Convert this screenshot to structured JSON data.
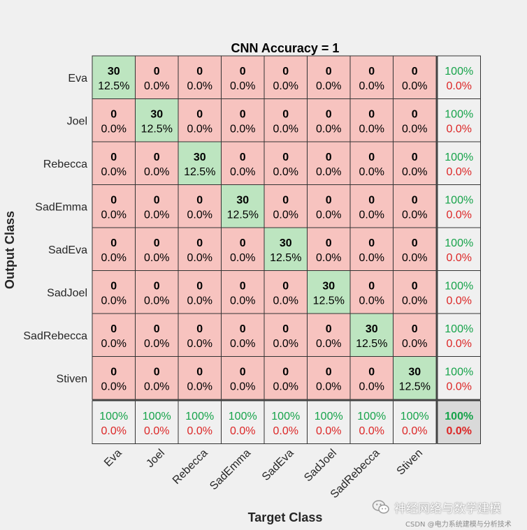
{
  "chart_data": {
    "type": "heatmap",
    "title": "CNN Accuracy  =  1",
    "xlabel": "Target Class",
    "ylabel": "Output Class",
    "classes": [
      "Eva",
      "Joel",
      "Rebecca",
      "SadEmma",
      "SadEva",
      "SadJoel",
      "SadRebecca",
      "Stiven"
    ],
    "matrix": [
      [
        30,
        0,
        0,
        0,
        0,
        0,
        0,
        0
      ],
      [
        0,
        30,
        0,
        0,
        0,
        0,
        0,
        0
      ],
      [
        0,
        0,
        30,
        0,
        0,
        0,
        0,
        0
      ],
      [
        0,
        0,
        0,
        30,
        0,
        0,
        0,
        0
      ],
      [
        0,
        0,
        0,
        0,
        30,
        0,
        0,
        0
      ],
      [
        0,
        0,
        0,
        0,
        0,
        30,
        0,
        0
      ],
      [
        0,
        0,
        0,
        0,
        0,
        0,
        30,
        0
      ],
      [
        0,
        0,
        0,
        0,
        0,
        0,
        0,
        30
      ]
    ],
    "percentages": [
      [
        "12.5%",
        "0.0%",
        "0.0%",
        "0.0%",
        "0.0%",
        "0.0%",
        "0.0%",
        "0.0%"
      ],
      [
        "0.0%",
        "12.5%",
        "0.0%",
        "0.0%",
        "0.0%",
        "0.0%",
        "0.0%",
        "0.0%"
      ],
      [
        "0.0%",
        "0.0%",
        "12.5%",
        "0.0%",
        "0.0%",
        "0.0%",
        "0.0%",
        "0.0%"
      ],
      [
        "0.0%",
        "0.0%",
        "0.0%",
        "12.5%",
        "0.0%",
        "0.0%",
        "0.0%",
        "0.0%"
      ],
      [
        "0.0%",
        "0.0%",
        "0.0%",
        "0.0%",
        "12.5%",
        "0.0%",
        "0.0%",
        "0.0%"
      ],
      [
        "0.0%",
        "0.0%",
        "0.0%",
        "0.0%",
        "0.0%",
        "12.5%",
        "0.0%",
        "0.0%"
      ],
      [
        "0.0%",
        "0.0%",
        "0.0%",
        "0.0%",
        "0.0%",
        "0.0%",
        "12.5%",
        "0.0%"
      ],
      [
        "0.0%",
        "0.0%",
        "0.0%",
        "0.0%",
        "0.0%",
        "0.0%",
        "0.0%",
        "12.5%"
      ]
    ],
    "row_summary": [
      {
        "correct": "100%",
        "wrong": "0.0%"
      },
      {
        "correct": "100%",
        "wrong": "0.0%"
      },
      {
        "correct": "100%",
        "wrong": "0.0%"
      },
      {
        "correct": "100%",
        "wrong": "0.0%"
      },
      {
        "correct": "100%",
        "wrong": "0.0%"
      },
      {
        "correct": "100%",
        "wrong": "0.0%"
      },
      {
        "correct": "100%",
        "wrong": "0.0%"
      },
      {
        "correct": "100%",
        "wrong": "0.0%"
      }
    ],
    "col_summary": [
      {
        "correct": "100%",
        "wrong": "0.0%"
      },
      {
        "correct": "100%",
        "wrong": "0.0%"
      },
      {
        "correct": "100%",
        "wrong": "0.0%"
      },
      {
        "correct": "100%",
        "wrong": "0.0%"
      },
      {
        "correct": "100%",
        "wrong": "0.0%"
      },
      {
        "correct": "100%",
        "wrong": "0.0%"
      },
      {
        "correct": "100%",
        "wrong": "0.0%"
      },
      {
        "correct": "100%",
        "wrong": "0.0%"
      }
    ],
    "overall": {
      "correct": "100%",
      "wrong": "0.0%"
    },
    "colors": {
      "diagonal": "#bde5c0",
      "off_diagonal": "#f7c3bf",
      "summary": "#f0f0f0",
      "overall": "#d9d9d9",
      "correct_text": "#16a34a",
      "wrong_text": "#dc2626"
    }
  },
  "watermark": {
    "text": "神经网络与数学建模",
    "sub": "CSDN @电力系统建模与分析技术",
    "icon": "wechat-icon"
  }
}
